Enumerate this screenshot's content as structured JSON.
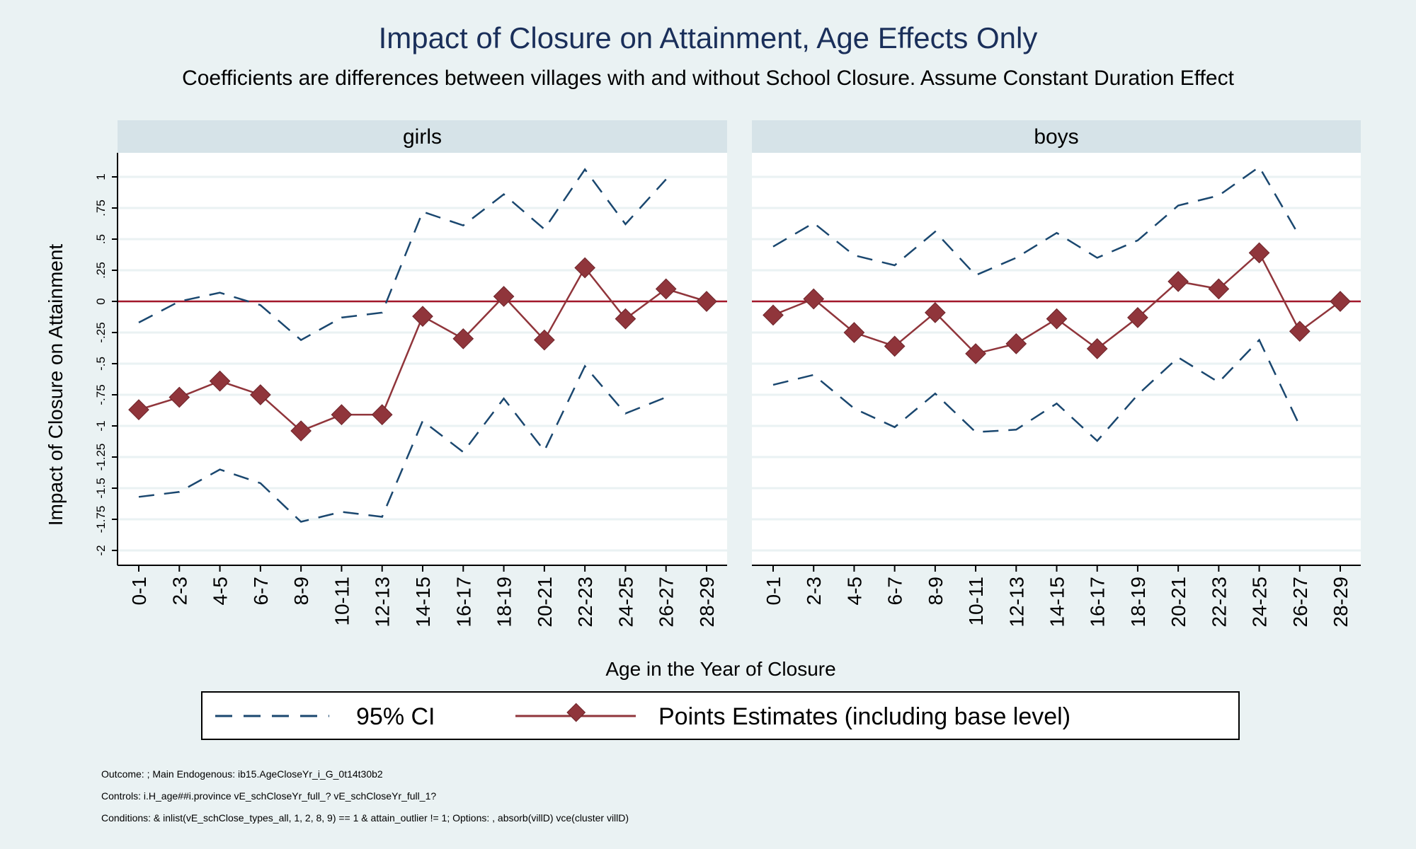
{
  "title": "Impact of Closure on Attainment, Age Effects Only",
  "subtitle": "Coefficients are differences between villages with and without School Closure. Assume Constant Duration Effect",
  "ylabel": "Impact of Closure on Attainment",
  "xlabel": "Age in the Year of Closure",
  "legend": {
    "ci_label": "95% CI",
    "point_label": "Points Estimates (including base level)",
    "placement": "bottom-center"
  },
  "notes": [
    "Outcome: ; Main Endogenous: ib15.AgeCloseYr_i_G_0t14t30b2",
    "Controls: i.H_age##i.province vE_schCloseYr_full_? vE_schCloseYr_full_1?",
    "Conditions: & inlist(vE_schClose_types_all, 1, 2, 8, 9) == 1 & attain_outlier != 1; Options: , absorb(villD) vce(cluster villD)"
  ],
  "colors": {
    "background": "#eaf2f3",
    "panel_header": "#d6e3e8",
    "ci_line": "#1a476f",
    "point_line": "#90353b",
    "reference_line": "#a3172a",
    "grid": "#eaf2f3",
    "title": "#1a2f5a"
  },
  "chart_data": {
    "type": "line",
    "categories": [
      "0-1",
      "2-3",
      "4-5",
      "6-7",
      "8-9",
      "10-11",
      "12-13",
      "14-15",
      "16-17",
      "18-19",
      "20-21",
      "22-23",
      "24-25",
      "26-27",
      "28-29"
    ],
    "ylim": [
      -2.1,
      1.2
    ],
    "yticks": [
      1,
      0.75,
      0.5,
      0.25,
      0,
      -0.25,
      -0.5,
      -0.75,
      -1,
      -1.25,
      -1.5,
      -1.75,
      -2
    ],
    "ytick_labels": [
      "1",
      ".75",
      ".5",
      ".25",
      "0",
      "-.25",
      "-.5",
      "-.75",
      "-1",
      "-1.25",
      "-1.5",
      "-1.75",
      "-2"
    ],
    "reference_y": 0,
    "grid": true,
    "panels": [
      {
        "name": "girls",
        "estimate": [
          -0.87,
          -0.77,
          -0.64,
          -0.75,
          -1.04,
          -0.91,
          -0.91,
          -0.12,
          -0.3,
          0.04,
          -0.31,
          0.27,
          -0.14,
          0.1,
          0
        ],
        "ci_upper": [
          -0.17,
          0.0,
          0.07,
          -0.03,
          -0.31,
          -0.13,
          -0.09,
          0.72,
          0.61,
          0.86,
          0.58,
          1.06,
          0.62,
          0.98,
          null
        ],
        "ci_lower": [
          -1.57,
          -1.53,
          -1.35,
          -1.46,
          -1.77,
          -1.69,
          -1.73,
          -0.96,
          -1.21,
          -0.78,
          -1.2,
          -0.52,
          -0.9,
          -0.77,
          null
        ]
      },
      {
        "name": "boys",
        "estimate": [
          -0.11,
          0.02,
          -0.25,
          -0.36,
          -0.09,
          -0.42,
          -0.34,
          -0.14,
          -0.38,
          -0.13,
          0.16,
          0.1,
          0.39,
          -0.24,
          0
        ],
        "ci_upper": [
          0.44,
          0.63,
          0.37,
          0.29,
          0.56,
          0.21,
          0.35,
          0.55,
          0.35,
          0.49,
          0.77,
          0.85,
          1.08,
          0.52,
          null
        ],
        "ci_lower": [
          -0.67,
          -0.59,
          -0.86,
          -1.01,
          -0.74,
          -1.05,
          -1.03,
          -0.82,
          -1.12,
          -0.75,
          -0.45,
          -0.65,
          -0.31,
          -1.0,
          null
        ]
      }
    ]
  }
}
